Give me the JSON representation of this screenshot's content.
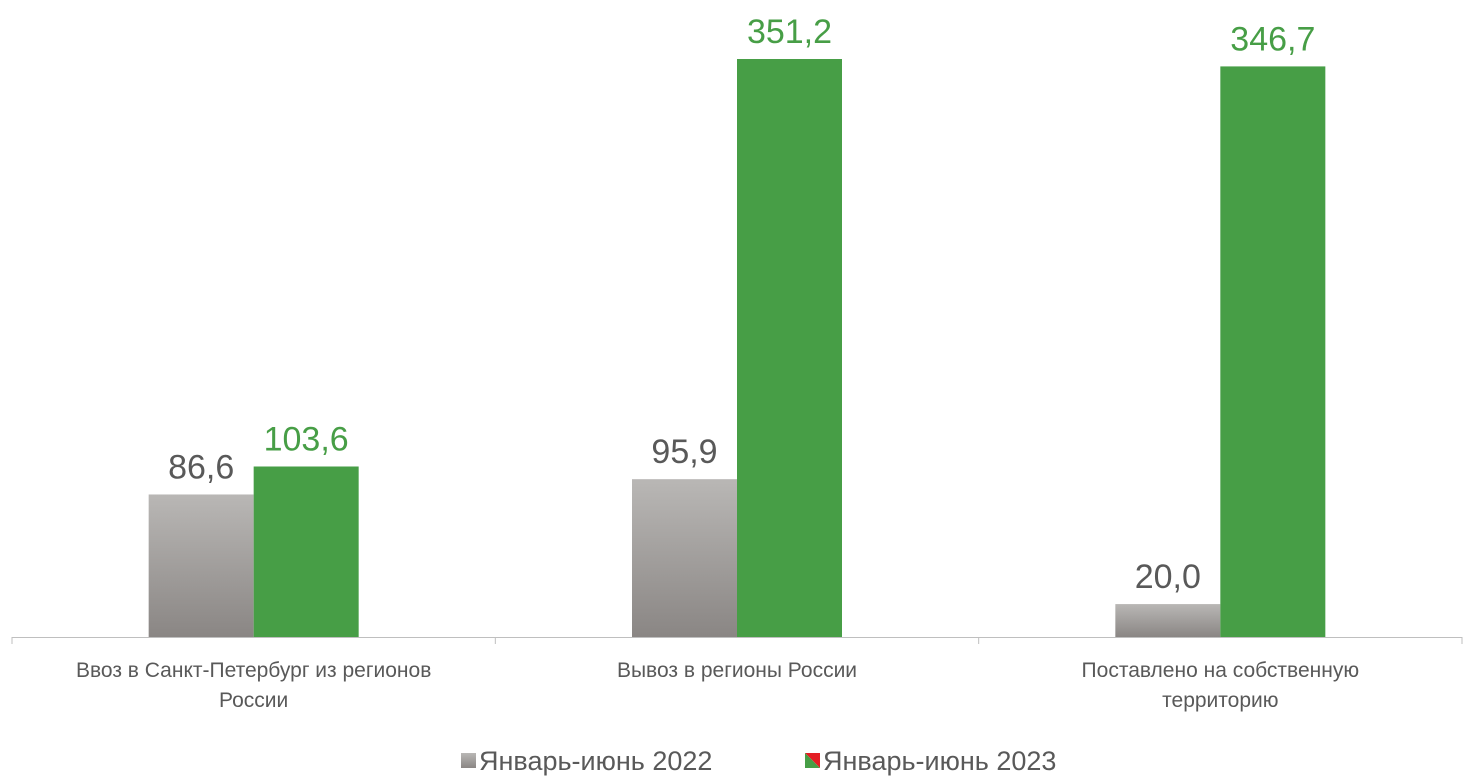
{
  "chart_data": {
    "type": "bar",
    "categories": [
      [
        "Ввоз в Санкт-Петербург из регионов",
        "России"
      ],
      [
        "Вывоз в регионы России"
      ],
      [
        "Поставлено на собственную",
        "территорию"
      ]
    ],
    "series": [
      {
        "name": "Январь-июнь 2022",
        "values": [
          86.6,
          95.9,
          20.0
        ],
        "labels": [
          "86,6",
          "95,9",
          "20,0"
        ],
        "color": "#9e9b98",
        "label_color": "#595959"
      },
      {
        "name": "Январь-июнь 2023",
        "values": [
          103.6,
          351.2,
          346.7
        ],
        "labels": [
          "103,6",
          "351,2",
          "346,7"
        ],
        "color": "#479e46",
        "label_color": "#479e46"
      }
    ],
    "ylim": [
      0,
      351.2
    ],
    "grid": false,
    "legend_position": "bottom"
  }
}
